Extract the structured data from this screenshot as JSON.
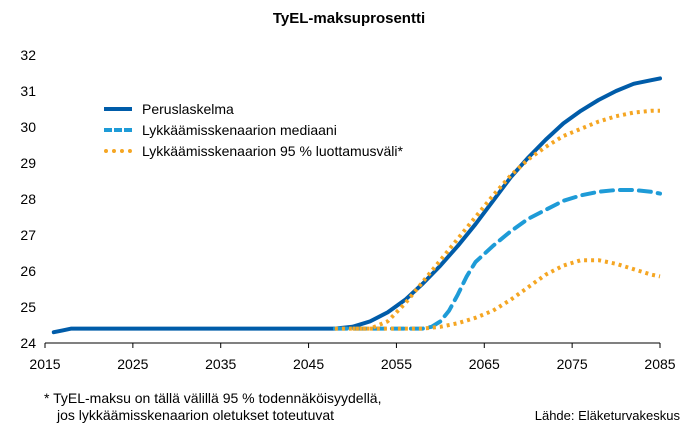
{
  "chart_data": {
    "type": "line",
    "title": "TyEL-maksuprosentti",
    "xlabel": "",
    "ylabel": "",
    "xlim": [
      2015,
      2085
    ],
    "ylim": [
      24,
      32
    ],
    "x_ticks": [
      "2015",
      "2025",
      "2035",
      "2045",
      "2055",
      "2065",
      "2075",
      "2085"
    ],
    "y_ticks": [
      "24",
      "25",
      "26",
      "27",
      "28",
      "29",
      "30",
      "31",
      "32"
    ],
    "grid": false,
    "legend_position": "top-left",
    "series": [
      {
        "name": "Peruslaskelma",
        "style": "solid",
        "color": "#005ca9",
        "x": [
          2016,
          2017,
          2018,
          2020,
          2030,
          2040,
          2048,
          2050,
          2052,
          2054,
          2056,
          2058,
          2060,
          2062,
          2064,
          2066,
          2068,
          2070,
          2072,
          2074,
          2076,
          2078,
          2080,
          2082,
          2084,
          2085
        ],
        "y": [
          24.3,
          24.35,
          24.4,
          24.4,
          24.4,
          24.4,
          24.4,
          24.45,
          24.6,
          24.85,
          25.2,
          25.65,
          26.15,
          26.7,
          27.3,
          27.95,
          28.6,
          29.15,
          29.65,
          30.1,
          30.45,
          30.75,
          31.0,
          31.2,
          31.3,
          31.35
        ]
      },
      {
        "name": "Lykkäämisskenaarion mediaani",
        "style": "dashed",
        "color": "#1e9bd7",
        "x": [
          2048,
          2050,
          2055,
          2058,
          2059,
          2060,
          2061,
          2062,
          2063,
          2064,
          2066,
          2068,
          2070,
          2072,
          2074,
          2076,
          2078,
          2080,
          2082,
          2084,
          2085
        ],
        "y": [
          24.4,
          24.4,
          24.4,
          24.4,
          24.45,
          24.6,
          24.9,
          25.35,
          25.85,
          26.25,
          26.7,
          27.1,
          27.45,
          27.7,
          27.95,
          28.1,
          28.2,
          28.25,
          28.25,
          28.2,
          28.15
        ]
      },
      {
        "name": "Lykkäämisskenaarion 95 % luottamusväli*",
        "style": "dotted",
        "color": "#f5a623",
        "x": [
          2050,
          2052,
          2054,
          2056,
          2058,
          2060,
          2062,
          2064,
          2066,
          2068,
          2070,
          2072,
          2074,
          2076,
          2078,
          2080,
          2082,
          2084,
          2085
        ],
        "y": [
          24.4,
          24.4,
          24.6,
          25.1,
          25.7,
          26.3,
          26.9,
          27.5,
          28.1,
          28.65,
          29.1,
          29.45,
          29.75,
          29.95,
          30.15,
          30.3,
          30.4,
          30.45,
          30.45
        ]
      },
      {
        "name": "",
        "style": "dotted",
        "color": "#f5a623",
        "x": [
          2048,
          2050,
          2055,
          2058,
          2060,
          2062,
          2064,
          2066,
          2068,
          2070,
          2072,
          2074,
          2076,
          2078,
          2080,
          2082,
          2084,
          2085
        ],
        "y": [
          24.4,
          24.4,
          24.4,
          24.4,
          24.45,
          24.55,
          24.7,
          24.9,
          25.2,
          25.55,
          25.9,
          26.15,
          26.3,
          26.3,
          26.2,
          26.05,
          25.9,
          25.85
        ]
      }
    ],
    "footnote": [
      "* TyEL-maksu on tällä välillä 95 % todennäköisyydellä,",
      "jos lykkäämisskenaarion oletukset toteutuvat"
    ],
    "source": "Lähde: Eläketurvakeskus"
  }
}
